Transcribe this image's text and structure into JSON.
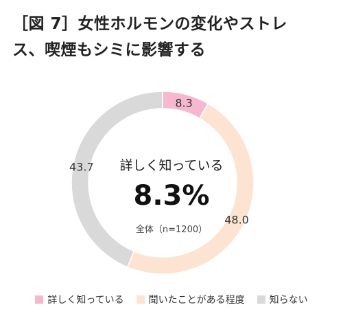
{
  "title_line1": "［図 7］女性ホルモンの変化やストレ",
  "title_line2": "ス、喫煙もシミに影響する",
  "center": {
    "label": "詳しく知っている",
    "value": "8.3%",
    "base": "全体（n=1200）"
  },
  "chart_data": {
    "type": "pie",
    "donut": true,
    "title": "",
    "series": [
      {
        "name": "詳しく知っている",
        "value": 8.3,
        "label": "8.3",
        "color": "#F6B8CF"
      },
      {
        "name": "聞いたことがある程度",
        "value": 48.0,
        "label": "48.0",
        "color": "#FDE3D1"
      },
      {
        "name": "知らない",
        "value": 43.7,
        "label": "43.7",
        "color": "#D9D9D9"
      }
    ],
    "legend_position": "bottom"
  }
}
